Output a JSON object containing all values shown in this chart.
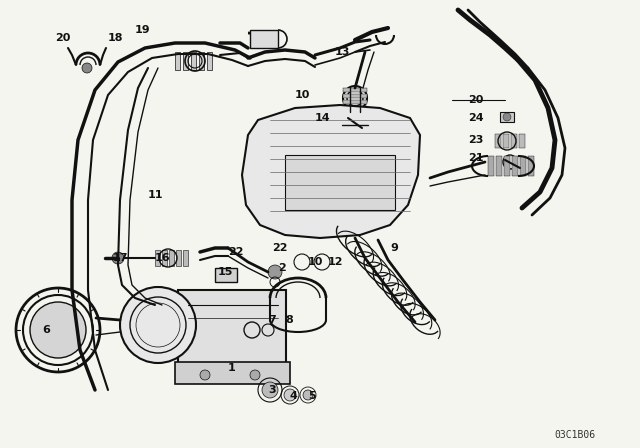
{
  "bg_color": "#f5f5f0",
  "line_color": "#111111",
  "diagram_code": "03C1B06",
  "labels": [
    [
      "20",
      55,
      38
    ],
    [
      "18",
      108,
      38
    ],
    [
      "19",
      135,
      30
    ],
    [
      "13",
      335,
      52
    ],
    [
      "10",
      295,
      95
    ],
    [
      "14",
      315,
      118
    ],
    [
      "11",
      148,
      195
    ],
    [
      "22",
      272,
      248
    ],
    [
      "9",
      390,
      248
    ],
    [
      "20",
      468,
      100
    ],
    [
      "24",
      468,
      118
    ],
    [
      "23",
      468,
      140
    ],
    [
      "21",
      468,
      158
    ],
    [
      "17",
      113,
      258
    ],
    [
      "16",
      155,
      258
    ],
    [
      "22",
      228,
      252
    ],
    [
      "2",
      278,
      268
    ],
    [
      "10",
      308,
      262
    ],
    [
      "12",
      328,
      262
    ],
    [
      "15",
      218,
      272
    ],
    [
      "7",
      268,
      320
    ],
    [
      "8",
      285,
      320
    ],
    [
      "6",
      42,
      330
    ],
    [
      "1",
      228,
      368
    ],
    [
      "3",
      268,
      390
    ],
    [
      "4",
      290,
      396
    ],
    [
      "5",
      308,
      396
    ]
  ]
}
